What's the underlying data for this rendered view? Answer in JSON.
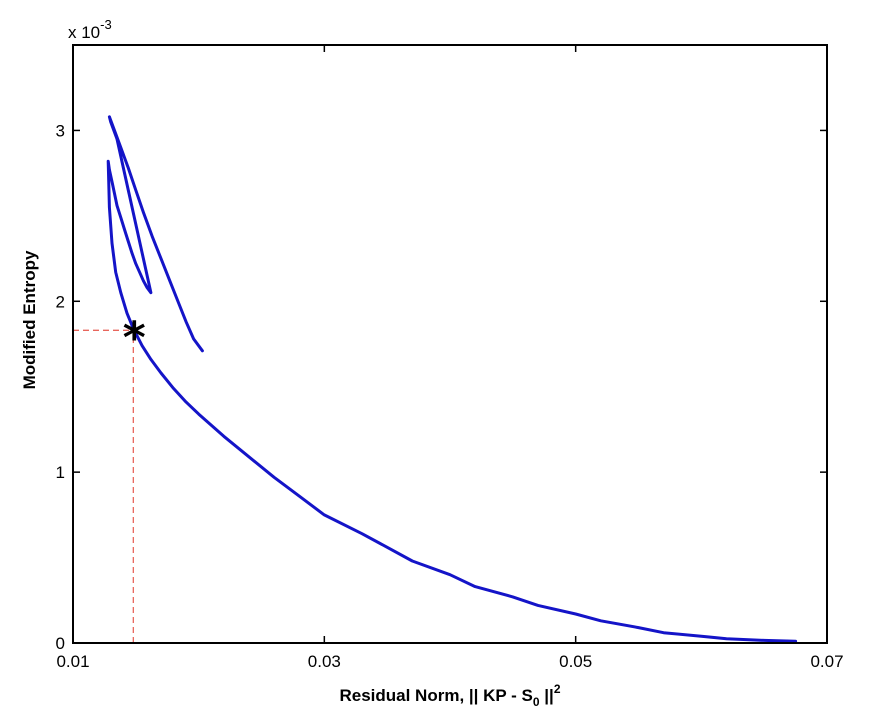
{
  "chart_data": {
    "type": "line",
    "title": "",
    "xlabel": "Residual Norm, || KP - S",
    "xlabel_subscript": "0",
    "xlabel_suffix": " ||",
    "xlabel_superscript": "2",
    "ylabel": "Modified Entropy",
    "y_exponent_base": "x 10",
    "y_exponent_power": "-3",
    "xlim": [
      0.01,
      0.07
    ],
    "ylim": [
      0,
      3.5
    ],
    "y_scale_factor": 0.001,
    "xticks": [
      0.01,
      0.03,
      0.05,
      0.07
    ],
    "xtick_labels": [
      "0.01",
      "0.03",
      "0.05",
      "0.07"
    ],
    "yticks": [
      0,
      1,
      2,
      3
    ],
    "ytick_labels": [
      "0",
      "1",
      "2",
      "3"
    ],
    "grid": false,
    "series_color": "#1414c8",
    "series": [
      {
        "x": [
          0.0675,
          0.065,
          0.062,
          0.06,
          0.057,
          0.055,
          0.052,
          0.05,
          0.047,
          0.045,
          0.042,
          0.04,
          0.037,
          0.035,
          0.033,
          0.03,
          0.028,
          0.026,
          0.024,
          0.022,
          0.02,
          0.019,
          0.018,
          0.017,
          0.0162,
          0.0155,
          0.0148,
          0.0143,
          0.0138,
          0.0134,
          0.0131,
          0.0129,
          0.0128,
          0.0129,
          0.0131,
          0.0133,
          0.0135,
          0.0138,
          0.0141,
          0.0144,
          0.0147,
          0.015,
          0.0153,
          0.0156,
          0.0159,
          0.0162,
          0.0135,
          0.013,
          0.0129,
          0.0132,
          0.0138,
          0.0144,
          0.015,
          0.0156,
          0.0163,
          0.017,
          0.0177,
          0.0184,
          0.019,
          0.0196,
          0.0203
        ],
        "y": [
          0.01,
          0.015,
          0.025,
          0.04,
          0.06,
          0.09,
          0.13,
          0.17,
          0.22,
          0.27,
          0.33,
          0.4,
          0.48,
          0.56,
          0.64,
          0.75,
          0.86,
          0.97,
          1.09,
          1.21,
          1.34,
          1.41,
          1.49,
          1.58,
          1.66,
          1.74,
          1.84,
          1.93,
          2.05,
          2.17,
          2.34,
          2.55,
          2.82,
          2.77,
          2.7,
          2.63,
          2.56,
          2.49,
          2.42,
          2.35,
          2.28,
          2.22,
          2.17,
          2.12,
          2.08,
          2.05,
          2.95,
          3.05,
          3.08,
          3.02,
          2.9,
          2.78,
          2.65,
          2.52,
          2.38,
          2.25,
          2.12,
          1.99,
          1.88,
          1.78,
          1.71
        ]
      },
      {
        "x": [
          0.0148,
          0.0148
        ],
        "y": [
          0,
          1.83
        ]
      },
      {
        "x": [
          0.01,
          0.0148
        ],
        "y": [
          1.83,
          1.83
        ]
      }
    ],
    "marker": {
      "x": 0.0148,
      "y": 1.83,
      "symbol": "*"
    }
  }
}
